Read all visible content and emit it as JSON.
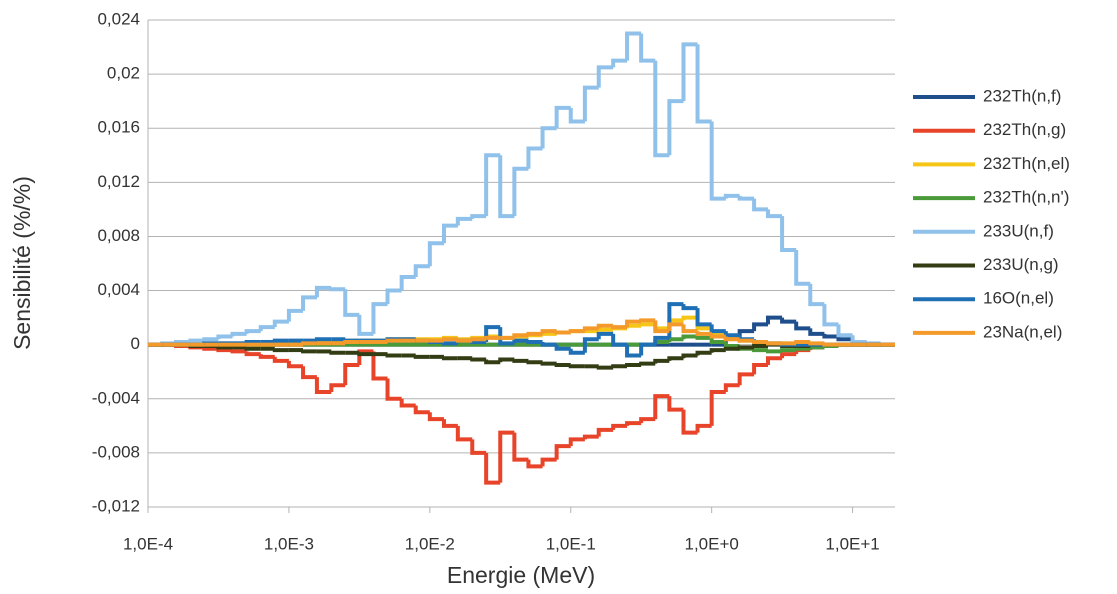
{
  "chart_data": {
    "type": "line",
    "step": true,
    "xscale": "log",
    "grid": true,
    "legend": "right",
    "xlabel": "Energie (MeV)",
    "ylabel": "Sensibilité (%/%)",
    "xlim": [
      0.0001,
      20
    ],
    "ylim": [
      -0.012,
      0.024
    ],
    "xticks": [
      {
        "value": 0.0001,
        "label": "1,0E-4"
      },
      {
        "value": 0.001,
        "label": "1,0E-3"
      },
      {
        "value": 0.01,
        "label": "1,0E-2"
      },
      {
        "value": 0.1,
        "label": "1,0E-1"
      },
      {
        "value": 1,
        "label": "1,0E+0"
      },
      {
        "value": 10,
        "label": "1,0E+1"
      }
    ],
    "yticks": [
      {
        "value": -0.012,
        "label": "-0,012"
      },
      {
        "value": -0.008,
        "label": "-0,008"
      },
      {
        "value": -0.004,
        "label": "-0,004"
      },
      0,
      {
        "value": 0.004,
        "label": "0,004"
      },
      {
        "value": 0.008,
        "label": "0,008"
      },
      {
        "value": 0.012,
        "label": "0,012"
      },
      {
        "value": 0.016,
        "label": "0,016"
      },
      {
        "value": 0.02,
        "label": "0,02"
      },
      {
        "value": 0.024,
        "label": "0,024"
      }
    ],
    "x": [
      0.0001,
      0.000126,
      0.000158,
      0.0002,
      0.000251,
      0.000316,
      0.000398,
      0.000501,
      0.000631,
      0.000794,
      0.001,
      0.00126,
      0.00158,
      0.002,
      0.00251,
      0.00316,
      0.00398,
      0.00501,
      0.00631,
      0.00794,
      0.01,
      0.0126,
      0.0158,
      0.02,
      0.0251,
      0.0316,
      0.0398,
      0.0501,
      0.0631,
      0.0794,
      0.1,
      0.126,
      0.158,
      0.2,
      0.251,
      0.316,
      0.398,
      0.501,
      0.631,
      0.794,
      1,
      1.26,
      1.58,
      2,
      2.51,
      3.16,
      3.98,
      5.01,
      6.31,
      7.94,
      10,
      12.6,
      15.8,
      20
    ],
    "series": [
      {
        "name": "232Th(n,f)",
        "color": "#1f4e8c",
        "values": [
          0,
          0,
          0,
          0,
          0,
          0,
          0,
          0,
          0,
          0,
          0,
          0,
          0,
          0,
          0,
          0,
          0,
          0,
          0,
          0,
          0,
          0,
          0,
          0,
          0,
          0,
          0,
          0,
          0,
          0,
          0,
          0,
          0,
          0,
          0,
          0,
          0,
          0,
          0,
          0,
          0,
          0.0005,
          0.001,
          0.0015,
          0.002,
          0.0017,
          0.0012,
          0.0008,
          0.0006,
          0.0004,
          0.0001,
          0,
          0,
          0
        ]
      },
      {
        "name": "232Th(n,g)",
        "color": "#e8442a",
        "values": [
          0,
          0,
          -0.0001,
          -0.0002,
          -0.0003,
          -0.0004,
          -0.0005,
          -0.0007,
          -0.0009,
          -0.0012,
          -0.0016,
          -0.0024,
          -0.0035,
          -0.003,
          -0.0015,
          -0.0005,
          -0.0025,
          -0.004,
          -0.0045,
          -0.005,
          -0.0055,
          -0.006,
          -0.007,
          -0.008,
          -0.0102,
          -0.0065,
          -0.0085,
          -0.009,
          -0.0085,
          -0.0075,
          -0.007,
          -0.0068,
          -0.0063,
          -0.006,
          -0.0058,
          -0.0055,
          -0.0038,
          -0.0048,
          -0.0065,
          -0.006,
          -0.0035,
          -0.003,
          -0.0022,
          -0.0015,
          -0.001,
          -0.0007,
          -0.0004,
          -0.0002,
          -0.0001,
          0,
          0,
          0,
          0,
          0
        ]
      },
      {
        "name": "232Th(n,el)",
        "color": "#f5c518",
        "values": [
          0,
          0,
          0,
          0,
          0,
          0,
          0,
          0,
          0,
          0,
          0,
          0.0001,
          0.0002,
          0.0002,
          0.0003,
          0.0003,
          0.0003,
          0.0004,
          0.0004,
          0.0004,
          0.0004,
          0.0005,
          0.0004,
          0.0005,
          0.0006,
          0.0005,
          0.0006,
          0.0007,
          0.0008,
          0.0009,
          0.001,
          0.001,
          0.0011,
          0.0012,
          0.0014,
          0.0015,
          0.0012,
          0.0018,
          0.002,
          0.0012,
          0.0008,
          0.0005,
          0.0003,
          0.0002,
          0.0001,
          0,
          0,
          0,
          0,
          0,
          0,
          0,
          0,
          0
        ]
      },
      {
        "name": "232Th(n,n')",
        "color": "#4a9a3a",
        "values": [
          0,
          0,
          0,
          0,
          0,
          0,
          0,
          0,
          0,
          0,
          0,
          0,
          0,
          0,
          0,
          0,
          0,
          0,
          0,
          0,
          0,
          0,
          0,
          0,
          0,
          0,
          0,
          0,
          0,
          0,
          0,
          0,
          0,
          0,
          0,
          0,
          0.0002,
          0.0004,
          0.0006,
          0.0005,
          0.0002,
          -0.0001,
          -0.0003,
          -0.0004,
          -0.0005,
          -0.0004,
          -0.0003,
          -0.0002,
          -0.0001,
          0,
          0,
          0,
          0,
          0
        ]
      },
      {
        "name": "233U(n,f)",
        "color": "#8fc1ea",
        "values": [
          0,
          0.0001,
          0.0002,
          0.0003,
          0.0004,
          0.0006,
          0.0008,
          0.001,
          0.0013,
          0.0017,
          0.0025,
          0.0035,
          0.0042,
          0.0041,
          0.0022,
          0.0008,
          0.003,
          0.004,
          0.005,
          0.0058,
          0.0075,
          0.0088,
          0.0093,
          0.0095,
          0.014,
          0.0095,
          0.013,
          0.0145,
          0.016,
          0.0175,
          0.0165,
          0.019,
          0.0205,
          0.021,
          0.023,
          0.021,
          0.014,
          0.018,
          0.0222,
          0.0165,
          0.0108,
          0.011,
          0.0108,
          0.01,
          0.0095,
          0.007,
          0.0045,
          0.003,
          0.0015,
          0.0007,
          0.0002,
          0.0001,
          0,
          0
        ]
      },
      {
        "name": "233U(n,g)",
        "color": "#333d14",
        "values": [
          0,
          0,
          0,
          -0.0001,
          -0.0001,
          -0.0002,
          -0.0002,
          -0.0003,
          -0.0003,
          -0.0004,
          -0.0004,
          -0.0005,
          -0.0005,
          -0.0006,
          -0.0006,
          -0.0007,
          -0.0007,
          -0.0008,
          -0.0008,
          -0.0009,
          -0.0009,
          -0.001,
          -0.001,
          -0.0011,
          -0.0013,
          -0.0011,
          -0.0012,
          -0.0013,
          -0.0014,
          -0.0015,
          -0.0016,
          -0.0016,
          -0.0017,
          -0.0016,
          -0.0015,
          -0.0014,
          -0.0012,
          -0.001,
          -0.0008,
          -0.0006,
          -0.0004,
          -0.0003,
          -0.0002,
          -0.0001,
          0,
          -0.0001,
          -0.0001,
          0,
          0,
          0,
          0,
          0,
          0,
          0
        ]
      },
      {
        "name": "16O(n,el)",
        "color": "#1f6fb5",
        "values": [
          0,
          0,
          0,
          0,
          0.0001,
          0.0001,
          0.0001,
          0.0002,
          0.0002,
          0.0003,
          0.0003,
          0.0003,
          0.0004,
          0.0004,
          0.0003,
          0.0003,
          0.0003,
          0.0004,
          0.0004,
          0.0003,
          0.0002,
          0.0001,
          0.0003,
          0.0002,
          0.0013,
          0.0001,
          0.0003,
          0.0002,
          0,
          -0.0003,
          -0.0006,
          0.0004,
          0.0008,
          0,
          -0.0008,
          0,
          0.0005,
          0.003,
          0.0027,
          0.0015,
          0.001,
          0.0007,
          0.0004,
          0.0002,
          0.0001,
          0,
          0,
          0,
          0,
          0,
          0,
          0,
          0,
          0
        ]
      },
      {
        "name": "23Na(n,el)",
        "color": "#f39a2a",
        "values": [
          0,
          0,
          0,
          0,
          0,
          0,
          0,
          0,
          0,
          0,
          0,
          0.0001,
          0.0001,
          0.0001,
          0.0002,
          0.0002,
          0.0002,
          0.0003,
          0.0003,
          0.0003,
          0.0003,
          0.0004,
          0.0003,
          0.0004,
          0.0005,
          0.0005,
          0.0007,
          0.0008,
          0.001,
          0.0009,
          0.001,
          0.0012,
          0.0014,
          0.0013,
          0.0017,
          0.0018,
          0.001,
          0.0015,
          0.001,
          0.0008,
          0.0006,
          0.0004,
          0.0003,
          0.0002,
          0.0001,
          0.0001,
          0.0002,
          0.0001,
          0,
          0,
          0,
          0,
          0,
          0
        ]
      }
    ]
  }
}
